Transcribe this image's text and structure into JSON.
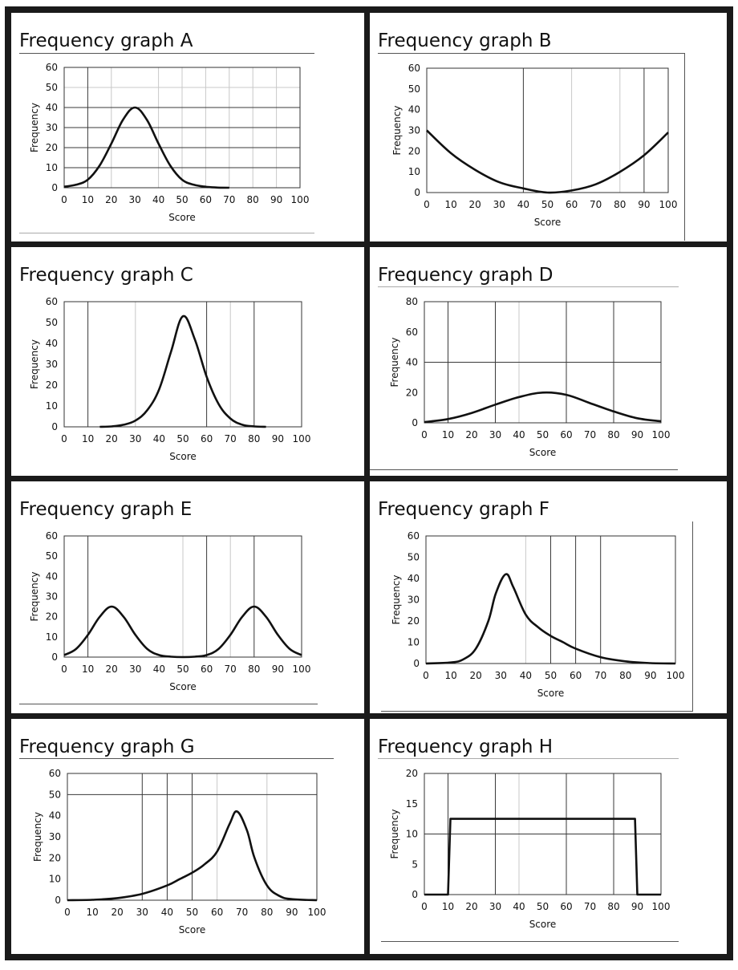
{
  "charts": [
    {
      "id": "A",
      "title": "Frequency graph A",
      "chart_data": {
        "type": "line",
        "title": "Frequency graph A",
        "xlabel": "Score",
        "ylabel": "Frequency",
        "xlim": [
          0,
          100
        ],
        "ylim": [
          0,
          60
        ],
        "xticks": [
          0,
          10,
          20,
          30,
          40,
          50,
          60,
          70,
          80,
          90,
          100
        ],
        "yticks": [
          0,
          10,
          20,
          30,
          40,
          50,
          60
        ],
        "major_vlines": [
          10
        ],
        "minor_vlines": [
          20,
          40,
          50,
          60,
          70,
          80,
          90
        ],
        "major_hlines": [
          10,
          20,
          30,
          40
        ],
        "minor_hlines": [
          50
        ],
        "series": [
          {
            "x": [
              0,
              5,
              10,
              15,
              20,
              25,
              30,
              35,
              40,
              45,
              50,
              55,
              60,
              65,
              70
            ],
            "y": [
              0.5,
              1.5,
              4,
              11,
              22,
              34,
              40,
              34,
              22,
              11,
              4,
              1.5,
              0.5,
              0.1,
              0
            ]
          }
        ]
      }
    },
    {
      "id": "B",
      "title": "Frequency graph B",
      "chart_data": {
        "type": "line",
        "title": "Frequency graph B",
        "xlabel": "Score",
        "ylabel": "Frequency",
        "xlim": [
          0,
          100
        ],
        "ylim": [
          0,
          60
        ],
        "xticks": [
          0,
          10,
          20,
          30,
          40,
          50,
          60,
          70,
          80,
          90,
          100
        ],
        "yticks": [
          0,
          10,
          20,
          30,
          40,
          50,
          60
        ],
        "major_vlines": [
          40,
          90
        ],
        "minor_vlines": [
          60,
          80
        ],
        "major_hlines": [],
        "minor_hlines": [],
        "series": [
          {
            "x": [
              0,
              10,
              20,
              30,
              40,
              50,
              60,
              70,
              80,
              90,
              100
            ],
            "y": [
              30,
              19,
              11,
              5,
              2,
              0,
              1,
              4,
              10,
              18,
              29
            ]
          }
        ]
      }
    },
    {
      "id": "C",
      "title": "Frequency graph C",
      "chart_data": {
        "type": "line",
        "title": "Frequency graph C",
        "xlabel": "Score",
        "ylabel": "Frequency",
        "xlim": [
          0,
          100
        ],
        "ylim": [
          0,
          60
        ],
        "xticks": [
          0,
          10,
          20,
          30,
          40,
          50,
          60,
          70,
          80,
          90,
          100
        ],
        "yticks": [
          0,
          10,
          20,
          30,
          40,
          50,
          60
        ],
        "major_vlines": [
          10,
          60,
          80
        ],
        "minor_vlines": [
          30,
          70
        ],
        "major_hlines": [],
        "minor_hlines": [],
        "series": [
          {
            "x": [
              15,
              20,
              25,
              30,
              35,
              40,
              45,
              50,
              55,
              60,
              65,
              70,
              75,
              80,
              85
            ],
            "y": [
              0,
              0.2,
              1,
              3,
              8,
              18,
              36,
              53,
              42,
              24,
              11,
              4,
              1,
              0.2,
              0
            ]
          }
        ]
      }
    },
    {
      "id": "D",
      "title": "Frequency graph D",
      "chart_data": {
        "type": "line",
        "title": "Frequency graph D",
        "xlabel": "Score",
        "ylabel": "Frequency",
        "xlim": [
          0,
          100
        ],
        "ylim": [
          0,
          80
        ],
        "xticks": [
          0,
          10,
          20,
          30,
          40,
          50,
          60,
          70,
          80,
          90,
          100
        ],
        "yticks": [
          0,
          20,
          40,
          60,
          80
        ],
        "major_vlines": [
          10,
          30,
          60,
          80
        ],
        "minor_vlines": [
          40
        ],
        "major_hlines": [
          40
        ],
        "minor_hlines": [],
        "series": [
          {
            "x": [
              0,
              10,
              20,
              30,
              40,
              50,
              60,
              70,
              80,
              90,
              100
            ],
            "y": [
              0.5,
              2.5,
              6.5,
              12,
              17,
              20,
              18.5,
              13,
              7.5,
              3,
              1
            ]
          }
        ]
      }
    },
    {
      "id": "E",
      "title": "Frequency graph E",
      "chart_data": {
        "type": "line",
        "title": "Frequency graph E",
        "xlabel": "Score",
        "ylabel": "Frequency",
        "xlim": [
          0,
          100
        ],
        "ylim": [
          0,
          60
        ],
        "xticks": [
          0,
          10,
          20,
          30,
          40,
          50,
          60,
          70,
          80,
          90,
          100
        ],
        "yticks": [
          0,
          10,
          20,
          30,
          40,
          50,
          60
        ],
        "major_vlines": [
          10,
          60,
          80
        ],
        "minor_vlines": [
          50,
          70
        ],
        "major_hlines": [],
        "minor_hlines": [],
        "series": [
          {
            "x": [
              0,
              5,
              10,
              15,
              20,
              25,
              30,
              35,
              40,
              45,
              50,
              55,
              60,
              65,
              70,
              75,
              80,
              85,
              90,
              95,
              100
            ],
            "y": [
              1,
              4,
              11,
              20,
              25,
              20,
              11,
              4,
              1,
              0.2,
              0,
              0.2,
              1,
              4,
              11,
              20,
              25,
              20,
              11,
              4,
              1
            ]
          }
        ]
      }
    },
    {
      "id": "F",
      "title": "Frequency graph F",
      "chart_data": {
        "type": "line",
        "title": "Frequency graph F",
        "xlabel": "Score",
        "ylabel": "Frequency",
        "xlim": [
          0,
          100
        ],
        "ylim": [
          0,
          60
        ],
        "xticks": [
          0,
          10,
          20,
          30,
          40,
          50,
          60,
          70,
          80,
          90,
          100
        ],
        "yticks": [
          0,
          10,
          20,
          30,
          40,
          50,
          60
        ],
        "major_vlines": [
          50,
          60,
          70
        ],
        "minor_vlines": [
          40
        ],
        "major_hlines": [],
        "minor_hlines": [],
        "series": [
          {
            "x": [
              0,
              10,
              15,
              20,
              25,
              28,
              32,
              35,
              40,
              45,
              50,
              55,
              60,
              70,
              80,
              90,
              100
            ],
            "y": [
              0,
              0.5,
              2,
              7,
              20,
              33,
              42,
              36,
              23,
              17,
              13,
              10,
              7,
              3,
              1,
              0.2,
              0
            ]
          }
        ]
      }
    },
    {
      "id": "G",
      "title": "Frequency graph G",
      "chart_data": {
        "type": "line",
        "title": "Frequency graph G",
        "xlabel": "Score",
        "ylabel": "Frequency",
        "xlim": [
          0,
          100
        ],
        "ylim": [
          0,
          60
        ],
        "xticks": [
          0,
          10,
          20,
          30,
          40,
          50,
          60,
          70,
          80,
          90,
          100
        ],
        "yticks": [
          0,
          10,
          20,
          30,
          40,
          50,
          60
        ],
        "major_vlines": [
          30,
          40,
          50
        ],
        "minor_vlines": [
          60,
          80
        ],
        "major_hlines": [
          50
        ],
        "minor_hlines": [],
        "series": [
          {
            "x": [
              0,
              10,
              20,
              30,
              40,
              45,
              50,
              55,
              60,
              65,
              68,
              72,
              75,
              80,
              85,
              90,
              100
            ],
            "y": [
              0,
              0.2,
              1,
              3,
              7,
              10,
              13,
              17,
              23,
              36,
              42,
              33,
              20,
              7,
              2,
              0.5,
              0
            ]
          }
        ]
      }
    },
    {
      "id": "H",
      "title": "Frequency graph H",
      "chart_data": {
        "type": "line",
        "title": "Frequency graph H",
        "xlabel": "Score",
        "ylabel": "Frequency",
        "xlim": [
          0,
          100
        ],
        "ylim": [
          0,
          20
        ],
        "xticks": [
          0,
          10,
          20,
          30,
          40,
          50,
          60,
          70,
          80,
          90,
          100
        ],
        "yticks": [
          0,
          5,
          10,
          15,
          20
        ],
        "major_vlines": [
          10,
          30,
          60,
          80
        ],
        "minor_vlines": [
          40
        ],
        "major_hlines": [
          10
        ],
        "minor_hlines": [],
        "series": [
          {
            "x": [
              0,
              10,
              11,
              89,
              90,
              100
            ],
            "y": [
              0,
              0,
              12.5,
              12.5,
              0,
              0
            ]
          }
        ]
      }
    }
  ]
}
